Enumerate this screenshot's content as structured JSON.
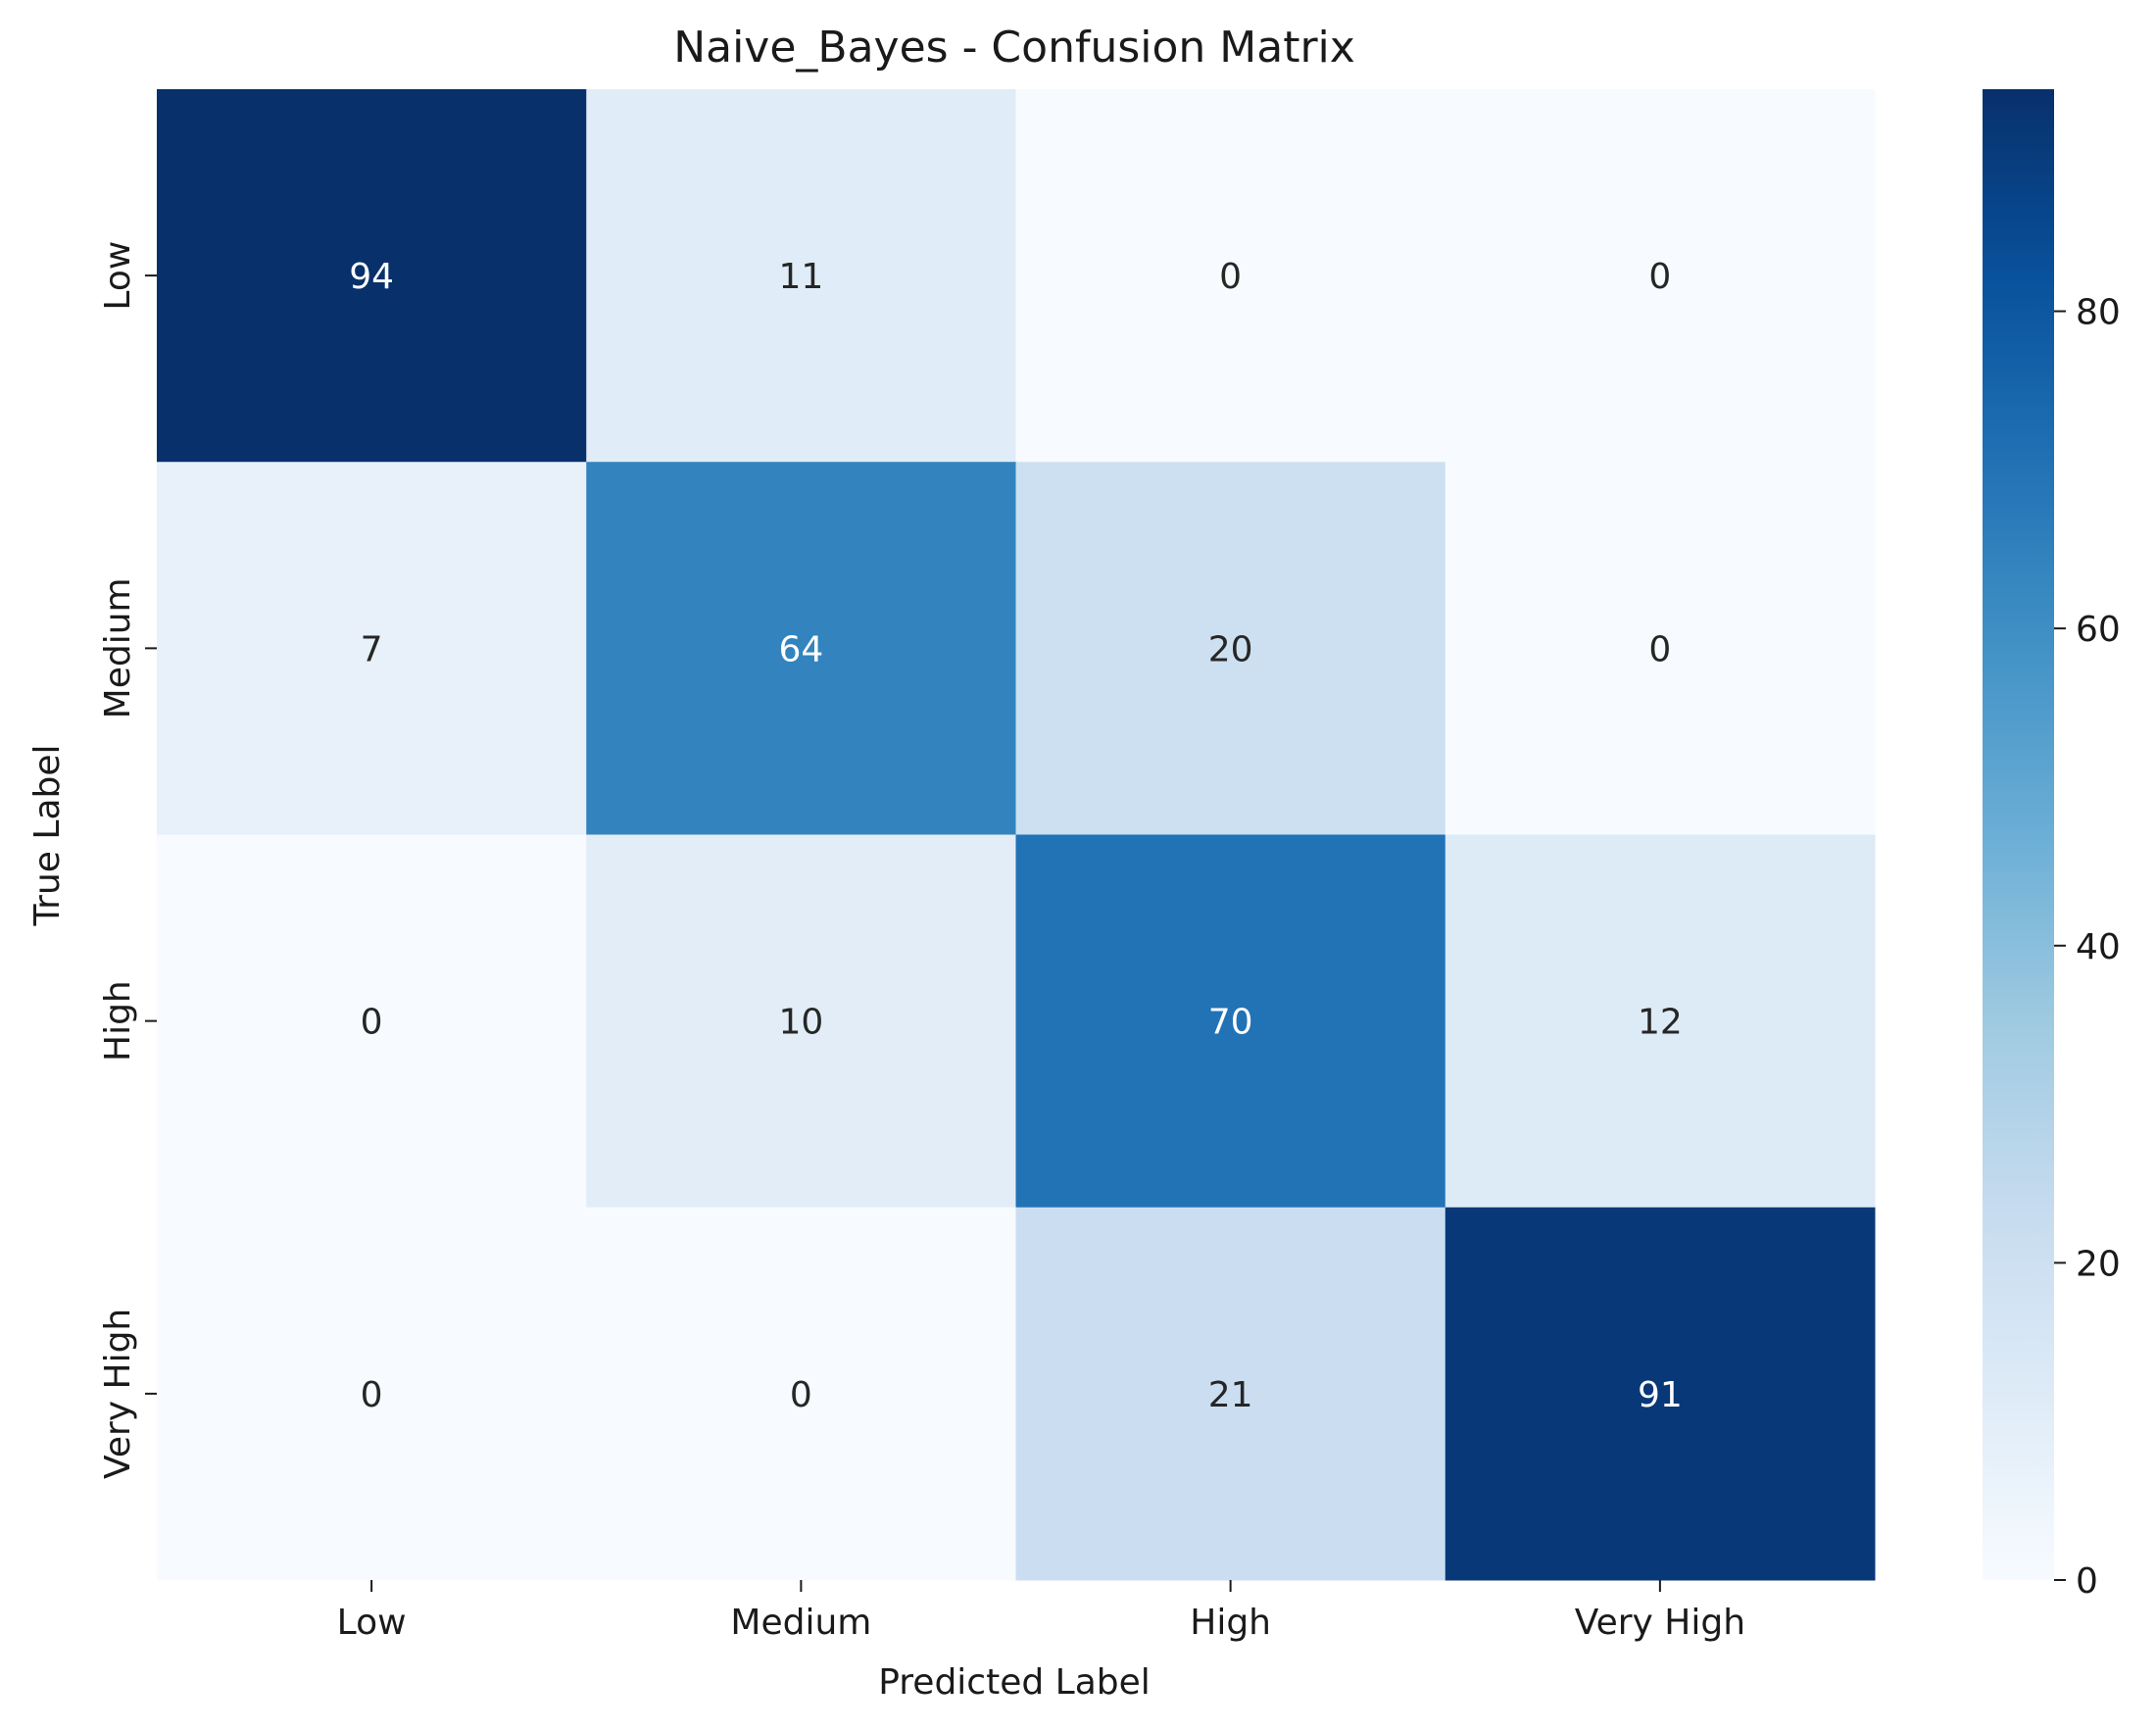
{
  "chart_data": {
    "type": "heatmap",
    "title": "Naive_Bayes - Confusion Matrix",
    "xlabel": "Predicted Label",
    "ylabel": "True Label",
    "x_categories": [
      "Low",
      "Medium",
      "High",
      "Very High"
    ],
    "y_categories": [
      "Low",
      "Medium",
      "High",
      "Very High"
    ],
    "values": [
      [
        94,
        11,
        0,
        0
      ],
      [
        7,
        64,
        20,
        0
      ],
      [
        0,
        10,
        70,
        12
      ],
      [
        0,
        0,
        21,
        91
      ]
    ],
    "colormap": "Blues",
    "vmin": 0,
    "vmax": 94,
    "colorbar": {
      "ticks": [
        0,
        20,
        40,
        60,
        80
      ],
      "tick_labels": [
        "0",
        "20",
        "40",
        "60",
        "80"
      ]
    }
  }
}
